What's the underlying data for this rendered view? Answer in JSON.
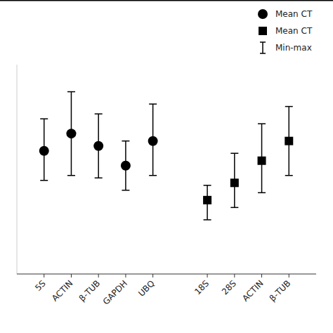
{
  "chart_data": {
    "type": "errorbar",
    "xlim": [
      0.0,
      11.0
    ],
    "ylim": [
      0.0,
      0.85
    ],
    "xticks": [
      {
        "value": 1,
        "label": "5S"
      },
      {
        "value": 2,
        "label": "ACTIN"
      },
      {
        "value": 3,
        "label": "β-TUB"
      },
      {
        "value": 4,
        "label": "GAPDH"
      },
      {
        "value": 5,
        "label": "UBQ"
      },
      {
        "value": 7,
        "label": "18S"
      },
      {
        "value": 8,
        "label": "28S"
      },
      {
        "value": 9,
        "label": "ACTIN"
      },
      {
        "value": 10,
        "label": "β-TUB"
      }
    ],
    "tick_labels": "x",
    "grid": false,
    "legend": "upper right",
    "error_bar_label": "Min-max",
    "series": [
      {
        "name": "Mean CT",
        "marker": "circle",
        "color": "#000000",
        "x": [
          1,
          2,
          3,
          4,
          5
        ],
        "values": [
          0.5,
          0.57,
          0.52,
          0.44,
          0.54
        ],
        "errors_lo": [
          0.12,
          0.17,
          0.13,
          0.1,
          0.14
        ],
        "errors_hi": [
          0.13,
          0.17,
          0.13,
          0.1,
          0.15
        ]
      },
      {
        "name": "Mean CT",
        "marker": "square",
        "color": "#000000",
        "x": [
          7,
          8,
          9,
          10
        ],
        "values": [
          0.3,
          0.37,
          0.46,
          0.54
        ],
        "errors_lo": [
          0.08,
          0.1,
          0.13,
          0.14
        ],
        "errors_hi": [
          0.06,
          0.12,
          0.15,
          0.14
        ]
      }
    ]
  }
}
